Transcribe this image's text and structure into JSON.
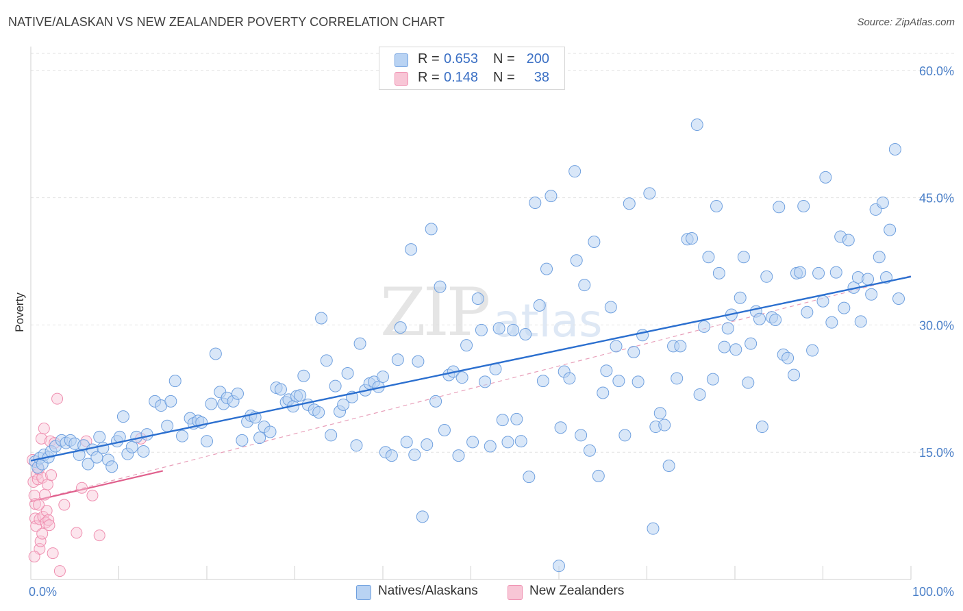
{
  "title": "NATIVE/ALASKAN VS NEW ZEALANDER POVERTY CORRELATION CHART",
  "source": "Source: ZipAtlas.com",
  "watermark": {
    "zip": "ZIP",
    "atlas": "atlas"
  },
  "colors": {
    "blue": "#6fa0df",
    "blue_line": "#2b6fcf",
    "pink": "#ef8fb0",
    "pink_line": "#e0608d",
    "tick": "#4a7fc8"
  },
  "legend": {
    "rows": [
      {
        "r_label": "R =",
        "r_value": "0.653",
        "n_label": "N =",
        "n_value": "200",
        "color": "#b9d3f3"
      },
      {
        "r_label": "R =",
        "r_value": "0.148",
        "n_label": "N =",
        "n_value": "38",
        "color": "#f8c6d6"
      }
    ]
  },
  "bottom_legend": [
    {
      "label": "Natives/Alaskans",
      "color": "#b9d3f3"
    },
    {
      "label": "New Zealanders",
      "color": "#f8c6d6"
    }
  ],
  "chart_data": {
    "type": "scatter",
    "title": "NATIVE/ALASKAN VS NEW ZEALANDER POVERTY CORRELATION CHART",
    "xlabel": "",
    "ylabel": "Poverty",
    "xlim": [
      0,
      100
    ],
    "ylim": [
      0,
      62
    ],
    "x_tick_labels": [
      "0.0%",
      "100.0%"
    ],
    "y_ticks": [
      15,
      30,
      45,
      60
    ],
    "y_tick_labels": [
      "15.0%",
      "30.0%",
      "45.0%",
      "60.0%"
    ],
    "grid": true,
    "series": [
      {
        "name": "Natives/Alaskans",
        "r": 0.653,
        "n": 200,
        "trend": {
          "x0": 0,
          "y0": 14.0,
          "x1": 100,
          "y1": 35.7
        },
        "points": [
          [
            0.5,
            13.9
          ],
          [
            0.8,
            13.2
          ],
          [
            1.0,
            14.3
          ],
          [
            1.3,
            13.6
          ],
          [
            1.5,
            14.7
          ],
          [
            2.0,
            14.4
          ],
          [
            2.3,
            15.1
          ],
          [
            2.8,
            15.7
          ],
          [
            3.5,
            16.4
          ],
          [
            4.0,
            16.1
          ],
          [
            4.5,
            16.4
          ],
          [
            5.0,
            16.0
          ],
          [
            5.5,
            14.7
          ],
          [
            6.0,
            15.8
          ],
          [
            6.5,
            13.6
          ],
          [
            7.0,
            15.3
          ],
          [
            7.5,
            14.4
          ],
          [
            7.8,
            16.8
          ],
          [
            8.2,
            15.5
          ],
          [
            8.8,
            14.1
          ],
          [
            9.2,
            13.3
          ],
          [
            9.8,
            16.3
          ],
          [
            10.1,
            16.8
          ],
          [
            10.5,
            19.2
          ],
          [
            11.0,
            14.8
          ],
          [
            11.5,
            15.6
          ],
          [
            12.0,
            16.8
          ],
          [
            12.8,
            15.1
          ],
          [
            13.2,
            17.1
          ],
          [
            14.1,
            21.0
          ],
          [
            14.8,
            20.5
          ],
          [
            15.5,
            18.1
          ],
          [
            15.9,
            21.0
          ],
          [
            16.4,
            23.4
          ],
          [
            17.2,
            16.9
          ],
          [
            18.1,
            19.0
          ],
          [
            18.5,
            18.4
          ],
          [
            19.0,
            18.7
          ],
          [
            19.4,
            18.5
          ],
          [
            20.0,
            16.3
          ],
          [
            20.5,
            20.7
          ],
          [
            21.0,
            26.6
          ],
          [
            21.5,
            22.1
          ],
          [
            21.9,
            20.7
          ],
          [
            22.3,
            21.4
          ],
          [
            23.0,
            21.0
          ],
          [
            23.5,
            21.9
          ],
          [
            24.0,
            16.4
          ],
          [
            24.6,
            18.6
          ],
          [
            25.0,
            19.3
          ],
          [
            25.5,
            19.1
          ],
          [
            26.0,
            16.7
          ],
          [
            26.5,
            18.0
          ],
          [
            27.2,
            17.4
          ],
          [
            27.9,
            22.6
          ],
          [
            28.4,
            22.4
          ],
          [
            29.0,
            20.9
          ],
          [
            29.3,
            21.2
          ],
          [
            29.8,
            20.4
          ],
          [
            30.2,
            21.6
          ],
          [
            30.6,
            21.7
          ],
          [
            31.0,
            24.0
          ],
          [
            31.5,
            20.6
          ],
          [
            32.2,
            20.0
          ],
          [
            32.7,
            19.7
          ],
          [
            33.0,
            30.8
          ],
          [
            33.6,
            25.8
          ],
          [
            34.1,
            17.0
          ],
          [
            34.6,
            22.8
          ],
          [
            35.1,
            19.8
          ],
          [
            35.5,
            20.6
          ],
          [
            36.0,
            24.3
          ],
          [
            36.5,
            21.5
          ],
          [
            37.0,
            15.8
          ],
          [
            37.4,
            27.8
          ],
          [
            38.0,
            22.3
          ],
          [
            38.5,
            23.1
          ],
          [
            39.0,
            23.3
          ],
          [
            39.5,
            22.7
          ],
          [
            40.0,
            23.9
          ],
          [
            40.3,
            15.0
          ],
          [
            41.0,
            14.6
          ],
          [
            41.7,
            25.9
          ],
          [
            42.0,
            29.7
          ],
          [
            42.7,
            16.2
          ],
          [
            43.2,
            38.9
          ],
          [
            43.6,
            14.7
          ],
          [
            44.0,
            25.7
          ],
          [
            44.5,
            7.4
          ],
          [
            45.0,
            15.9
          ],
          [
            45.5,
            41.3
          ],
          [
            46.0,
            21.0
          ],
          [
            46.5,
            34.5
          ],
          [
            47.0,
            17.6
          ],
          [
            47.5,
            24.1
          ],
          [
            48.0,
            24.5
          ],
          [
            48.6,
            14.6
          ],
          [
            49.0,
            23.8
          ],
          [
            49.5,
            27.6
          ],
          [
            50.2,
            16.2
          ],
          [
            50.8,
            33.1
          ],
          [
            51.2,
            29.4
          ],
          [
            51.6,
            23.3
          ],
          [
            52.2,
            15.7
          ],
          [
            52.8,
            24.8
          ],
          [
            53.2,
            29.6
          ],
          [
            53.6,
            18.8
          ],
          [
            54.2,
            16.2
          ],
          [
            54.8,
            29.4
          ],
          [
            55.2,
            18.9
          ],
          [
            55.7,
            16.3
          ],
          [
            56.2,
            28.9
          ],
          [
            56.6,
            12.1
          ],
          [
            57.3,
            44.4
          ],
          [
            57.8,
            32.3
          ],
          [
            58.2,
            23.4
          ],
          [
            58.6,
            36.6
          ],
          [
            59.1,
            45.2
          ],
          [
            60.0,
            1.6
          ],
          [
            60.2,
            17.9
          ],
          [
            60.6,
            24.5
          ],
          [
            61.2,
            23.7
          ],
          [
            61.8,
            48.1
          ],
          [
            62.0,
            37.6
          ],
          [
            62.5,
            17.0
          ],
          [
            62.9,
            34.7
          ],
          [
            63.5,
            15.2
          ],
          [
            64.0,
            39.8
          ],
          [
            64.5,
            12.2
          ],
          [
            65.0,
            22.0
          ],
          [
            65.4,
            24.6
          ],
          [
            65.9,
            32.1
          ],
          [
            66.5,
            27.5
          ],
          [
            66.8,
            23.4
          ],
          [
            67.5,
            17.0
          ],
          [
            68.0,
            44.3
          ],
          [
            68.5,
            26.8
          ],
          [
            69.0,
            23.3
          ],
          [
            69.5,
            28.8
          ],
          [
            70.3,
            45.5
          ],
          [
            70.7,
            6.0
          ],
          [
            71.0,
            18.0
          ],
          [
            71.5,
            19.6
          ],
          [
            72.0,
            18.2
          ],
          [
            72.5,
            13.4
          ],
          [
            73.0,
            27.5
          ],
          [
            73.4,
            23.7
          ],
          [
            73.8,
            27.5
          ],
          [
            74.6,
            40.1
          ],
          [
            75.1,
            40.2
          ],
          [
            75.7,
            53.6
          ],
          [
            76.0,
            21.8
          ],
          [
            76.5,
            29.8
          ],
          [
            77.0,
            38.0
          ],
          [
            77.5,
            23.6
          ],
          [
            77.9,
            44.0
          ],
          [
            78.2,
            36.1
          ],
          [
            78.8,
            27.4
          ],
          [
            79.2,
            29.6
          ],
          [
            79.6,
            31.2
          ],
          [
            80.1,
            27.1
          ],
          [
            80.6,
            33.2
          ],
          [
            81.0,
            38.0
          ],
          [
            81.5,
            23.2
          ],
          [
            81.8,
            27.8
          ],
          [
            82.4,
            31.6
          ],
          [
            82.8,
            30.7
          ],
          [
            83.1,
            18.0
          ],
          [
            83.6,
            35.7
          ],
          [
            84.2,
            30.9
          ],
          [
            84.6,
            30.6
          ],
          [
            85.0,
            43.9
          ],
          [
            85.5,
            26.5
          ],
          [
            86.0,
            26.1
          ],
          [
            86.7,
            24.1
          ],
          [
            87.0,
            36.1
          ],
          [
            87.4,
            36.2
          ],
          [
            87.8,
            44.0
          ],
          [
            88.2,
            31.5
          ],
          [
            88.8,
            27.0
          ],
          [
            89.5,
            36.1
          ],
          [
            90.0,
            32.8
          ],
          [
            90.3,
            47.4
          ],
          [
            91.0,
            30.3
          ],
          [
            91.5,
            36.2
          ],
          [
            92.0,
            40.4
          ],
          [
            92.4,
            32.0
          ],
          [
            92.9,
            40.0
          ],
          [
            93.5,
            34.4
          ],
          [
            94.0,
            35.6
          ],
          [
            94.3,
            30.4
          ],
          [
            95.1,
            35.4
          ],
          [
            95.5,
            33.6
          ],
          [
            96.0,
            43.6
          ],
          [
            96.4,
            38.0
          ],
          [
            96.8,
            44.4
          ],
          [
            97.2,
            35.6
          ],
          [
            97.6,
            41.2
          ],
          [
            98.2,
            50.7
          ],
          [
            98.6,
            33.1
          ]
        ]
      },
      {
        "name": "New Zealanders",
        "r": 0.148,
        "n": 38,
        "trend_solid": {
          "x0": 0,
          "y0": 9.2,
          "x1": 15,
          "y1": 12.8
        },
        "trend_dashed": {
          "x0": 0,
          "y0": 9.2,
          "x1": 100,
          "y1": 35.8
        },
        "points": [
          [
            0.2,
            14.1
          ],
          [
            0.3,
            11.5
          ],
          [
            0.4,
            9.9
          ],
          [
            0.5,
            8.9
          ],
          [
            0.5,
            7.2
          ],
          [
            0.6,
            6.3
          ],
          [
            0.7,
            12.4
          ],
          [
            0.8,
            11.8
          ],
          [
            0.9,
            13.0
          ],
          [
            1.0,
            3.6
          ],
          [
            1.0,
            7.1
          ],
          [
            1.1,
            4.5
          ],
          [
            1.2,
            16.6
          ],
          [
            1.3,
            12.0
          ],
          [
            1.3,
            5.4
          ],
          [
            1.4,
            7.4
          ],
          [
            1.5,
            17.8
          ],
          [
            1.6,
            10.0
          ],
          [
            1.7,
            6.7
          ],
          [
            1.8,
            8.1
          ],
          [
            1.9,
            11.2
          ],
          [
            2.0,
            7.0
          ],
          [
            2.1,
            6.4
          ],
          [
            2.2,
            16.3
          ],
          [
            2.3,
            12.3
          ],
          [
            2.5,
            3.1
          ],
          [
            2.7,
            16.1
          ],
          [
            3.0,
            21.3
          ],
          [
            3.3,
            1.0
          ],
          [
            3.8,
            8.8
          ],
          [
            5.2,
            5.5
          ],
          [
            5.8,
            10.8
          ],
          [
            6.3,
            16.3
          ],
          [
            7.0,
            9.9
          ],
          [
            7.8,
            5.2
          ],
          [
            12.5,
            16.6
          ],
          [
            0.4,
            2.7
          ],
          [
            0.9,
            8.8
          ]
        ]
      }
    ]
  }
}
